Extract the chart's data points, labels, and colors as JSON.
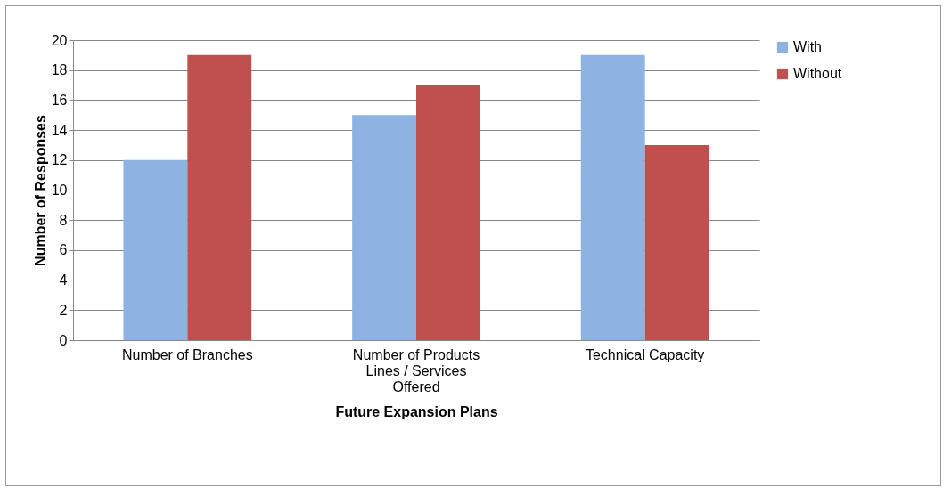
{
  "chart_data": {
    "type": "bar",
    "xlabel": "Future Expansion Plans",
    "ylabel": "Number of Responses",
    "categories": [
      "Number of Branches",
      "Number of Products Lines / Services Offered",
      "Technical Capacity"
    ],
    "series": [
      {
        "name": "With",
        "color": "#8db3e2",
        "values": [
          12,
          15,
          19
        ]
      },
      {
        "name": "Without",
        "color": "#c0504d",
        "values": [
          19,
          17,
          13
        ]
      }
    ],
    "ylim": [
      0,
      20
    ],
    "yticks": [
      0,
      2,
      4,
      6,
      8,
      10,
      12,
      14,
      16,
      18,
      20
    ],
    "grid": "y",
    "legend": "right"
  }
}
